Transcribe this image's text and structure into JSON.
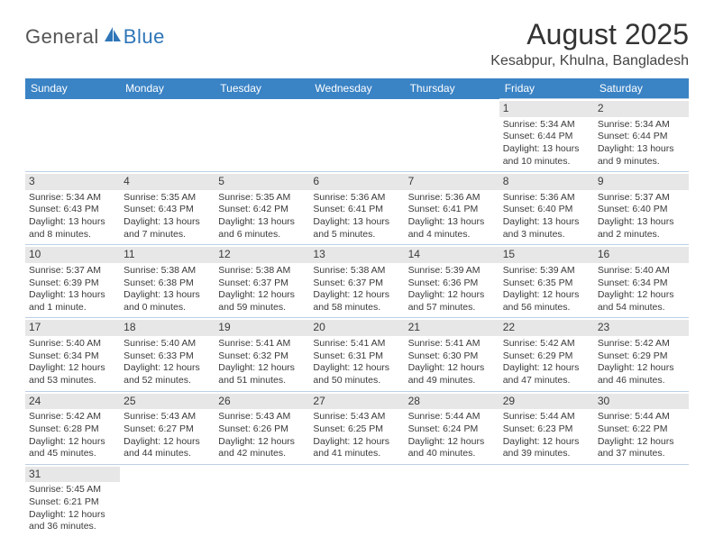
{
  "logo": {
    "general": "General",
    "blue": "Blue"
  },
  "title": "August 2025",
  "location": "Kesabpur, Khulna, Bangladesh",
  "colors": {
    "header_bg": "#3a83c5",
    "header_fg": "#ffffff",
    "daynum_bg": "#e7e7e7",
    "border": "#bcd0e4",
    "logo_blue": "#2f76b8",
    "text": "#3a3a3a"
  },
  "weekdays": [
    "Sunday",
    "Monday",
    "Tuesday",
    "Wednesday",
    "Thursday",
    "Friday",
    "Saturday"
  ],
  "weeks": [
    [
      null,
      null,
      null,
      null,
      null,
      {
        "n": "1",
        "sr": "Sunrise: 5:34 AM",
        "ss": "Sunset: 6:44 PM",
        "dl": "Daylight: 13 hours and 10 minutes."
      },
      {
        "n": "2",
        "sr": "Sunrise: 5:34 AM",
        "ss": "Sunset: 6:44 PM",
        "dl": "Daylight: 13 hours and 9 minutes."
      }
    ],
    [
      {
        "n": "3",
        "sr": "Sunrise: 5:34 AM",
        "ss": "Sunset: 6:43 PM",
        "dl": "Daylight: 13 hours and 8 minutes."
      },
      {
        "n": "4",
        "sr": "Sunrise: 5:35 AM",
        "ss": "Sunset: 6:43 PM",
        "dl": "Daylight: 13 hours and 7 minutes."
      },
      {
        "n": "5",
        "sr": "Sunrise: 5:35 AM",
        "ss": "Sunset: 6:42 PM",
        "dl": "Daylight: 13 hours and 6 minutes."
      },
      {
        "n": "6",
        "sr": "Sunrise: 5:36 AM",
        "ss": "Sunset: 6:41 PM",
        "dl": "Daylight: 13 hours and 5 minutes."
      },
      {
        "n": "7",
        "sr": "Sunrise: 5:36 AM",
        "ss": "Sunset: 6:41 PM",
        "dl": "Daylight: 13 hours and 4 minutes."
      },
      {
        "n": "8",
        "sr": "Sunrise: 5:36 AM",
        "ss": "Sunset: 6:40 PM",
        "dl": "Daylight: 13 hours and 3 minutes."
      },
      {
        "n": "9",
        "sr": "Sunrise: 5:37 AM",
        "ss": "Sunset: 6:40 PM",
        "dl": "Daylight: 13 hours and 2 minutes."
      }
    ],
    [
      {
        "n": "10",
        "sr": "Sunrise: 5:37 AM",
        "ss": "Sunset: 6:39 PM",
        "dl": "Daylight: 13 hours and 1 minute."
      },
      {
        "n": "11",
        "sr": "Sunrise: 5:38 AM",
        "ss": "Sunset: 6:38 PM",
        "dl": "Daylight: 13 hours and 0 minutes."
      },
      {
        "n": "12",
        "sr": "Sunrise: 5:38 AM",
        "ss": "Sunset: 6:37 PM",
        "dl": "Daylight: 12 hours and 59 minutes."
      },
      {
        "n": "13",
        "sr": "Sunrise: 5:38 AM",
        "ss": "Sunset: 6:37 PM",
        "dl": "Daylight: 12 hours and 58 minutes."
      },
      {
        "n": "14",
        "sr": "Sunrise: 5:39 AM",
        "ss": "Sunset: 6:36 PM",
        "dl": "Daylight: 12 hours and 57 minutes."
      },
      {
        "n": "15",
        "sr": "Sunrise: 5:39 AM",
        "ss": "Sunset: 6:35 PM",
        "dl": "Daylight: 12 hours and 56 minutes."
      },
      {
        "n": "16",
        "sr": "Sunrise: 5:40 AM",
        "ss": "Sunset: 6:34 PM",
        "dl": "Daylight: 12 hours and 54 minutes."
      }
    ],
    [
      {
        "n": "17",
        "sr": "Sunrise: 5:40 AM",
        "ss": "Sunset: 6:34 PM",
        "dl": "Daylight: 12 hours and 53 minutes."
      },
      {
        "n": "18",
        "sr": "Sunrise: 5:40 AM",
        "ss": "Sunset: 6:33 PM",
        "dl": "Daylight: 12 hours and 52 minutes."
      },
      {
        "n": "19",
        "sr": "Sunrise: 5:41 AM",
        "ss": "Sunset: 6:32 PM",
        "dl": "Daylight: 12 hours and 51 minutes."
      },
      {
        "n": "20",
        "sr": "Sunrise: 5:41 AM",
        "ss": "Sunset: 6:31 PM",
        "dl": "Daylight: 12 hours and 50 minutes."
      },
      {
        "n": "21",
        "sr": "Sunrise: 5:41 AM",
        "ss": "Sunset: 6:30 PM",
        "dl": "Daylight: 12 hours and 49 minutes."
      },
      {
        "n": "22",
        "sr": "Sunrise: 5:42 AM",
        "ss": "Sunset: 6:29 PM",
        "dl": "Daylight: 12 hours and 47 minutes."
      },
      {
        "n": "23",
        "sr": "Sunrise: 5:42 AM",
        "ss": "Sunset: 6:29 PM",
        "dl": "Daylight: 12 hours and 46 minutes."
      }
    ],
    [
      {
        "n": "24",
        "sr": "Sunrise: 5:42 AM",
        "ss": "Sunset: 6:28 PM",
        "dl": "Daylight: 12 hours and 45 minutes."
      },
      {
        "n": "25",
        "sr": "Sunrise: 5:43 AM",
        "ss": "Sunset: 6:27 PM",
        "dl": "Daylight: 12 hours and 44 minutes."
      },
      {
        "n": "26",
        "sr": "Sunrise: 5:43 AM",
        "ss": "Sunset: 6:26 PM",
        "dl": "Daylight: 12 hours and 42 minutes."
      },
      {
        "n": "27",
        "sr": "Sunrise: 5:43 AM",
        "ss": "Sunset: 6:25 PM",
        "dl": "Daylight: 12 hours and 41 minutes."
      },
      {
        "n": "28",
        "sr": "Sunrise: 5:44 AM",
        "ss": "Sunset: 6:24 PM",
        "dl": "Daylight: 12 hours and 40 minutes."
      },
      {
        "n": "29",
        "sr": "Sunrise: 5:44 AM",
        "ss": "Sunset: 6:23 PM",
        "dl": "Daylight: 12 hours and 39 minutes."
      },
      {
        "n": "30",
        "sr": "Sunrise: 5:44 AM",
        "ss": "Sunset: 6:22 PM",
        "dl": "Daylight: 12 hours and 37 minutes."
      }
    ],
    [
      {
        "n": "31",
        "sr": "Sunrise: 5:45 AM",
        "ss": "Sunset: 6:21 PM",
        "dl": "Daylight: 12 hours and 36 minutes."
      },
      null,
      null,
      null,
      null,
      null,
      null
    ]
  ]
}
